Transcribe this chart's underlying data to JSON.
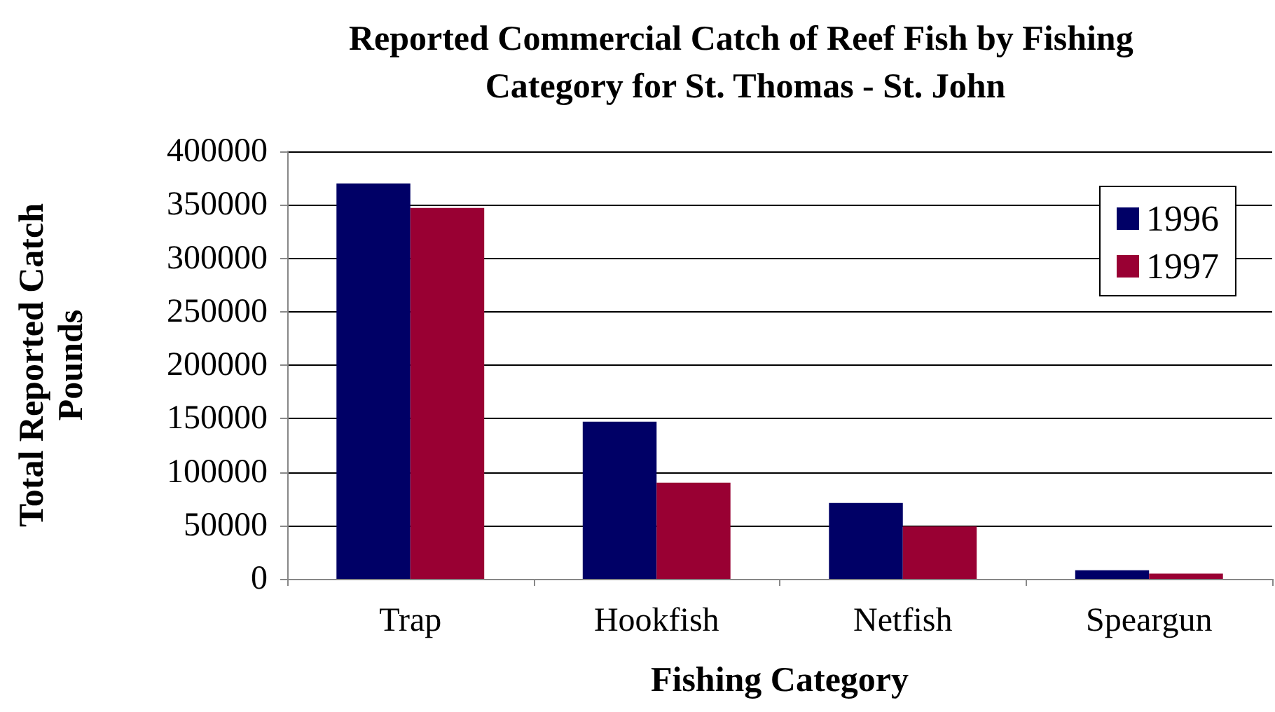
{
  "chart_data": {
    "type": "bar",
    "title": "Reported Commercial Catch of Reef Fish by Fishing Category for St. Thomas - St. John",
    "xlabel": "Fishing Category",
    "ylabel": "Total Reported Catch Pounds",
    "categories": [
      "Trap",
      "Hookfish",
      "Netfish",
      "Speargun"
    ],
    "series": [
      {
        "name": "1996",
        "color": "#000066",
        "values": [
          370000,
          147000,
          71000,
          8000
        ]
      },
      {
        "name": "1997",
        "color": "#990033",
        "values": [
          347000,
          90000,
          49000,
          5000
        ]
      }
    ],
    "ylim": [
      0,
      400000
    ],
    "yticks": [
      0,
      50000,
      100000,
      150000,
      200000,
      250000,
      300000,
      350000,
      400000
    ],
    "grid": "y",
    "legend": "top right"
  }
}
